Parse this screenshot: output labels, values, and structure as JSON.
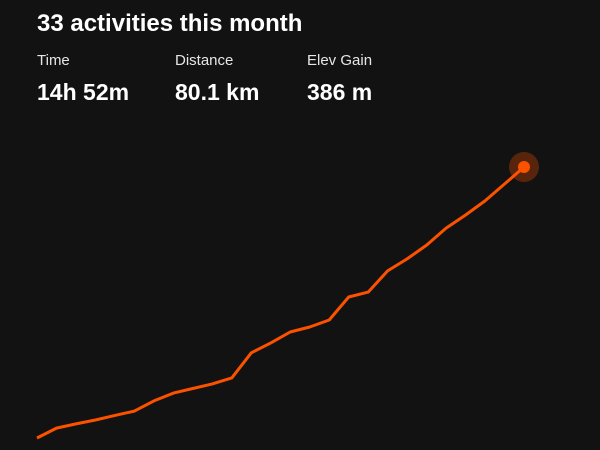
{
  "header": {
    "title": "33 activities this month",
    "stats": [
      {
        "label": "Time",
        "value": "14h 52m"
      },
      {
        "label": "Distance",
        "value": "80.1 km"
      },
      {
        "label": "Elev Gain",
        "value": "386 m"
      }
    ]
  },
  "chart_data": {
    "type": "line",
    "categories": [
      null,
      null,
      null,
      null,
      null,
      null,
      null,
      null,
      null,
      null,
      null,
      null,
      null,
      null,
      null,
      null,
      null,
      null,
      null,
      null,
      null,
      null,
      null,
      null,
      null,
      null
    ],
    "values": [
      3.4,
      6.2,
      7.4,
      8.5,
      9.8,
      11.0,
      13.9,
      16.1,
      17.4,
      18.7,
      20.4,
      27.5,
      30.3,
      33.4,
      34.8,
      36.8,
      43.3,
      44.7,
      50.7,
      54.1,
      58.0,
      62.8,
      66.5,
      70.5,
      75.3,
      80.1
    ],
    "color": "#fc5200",
    "ylim": [
      0,
      80.1
    ]
  }
}
